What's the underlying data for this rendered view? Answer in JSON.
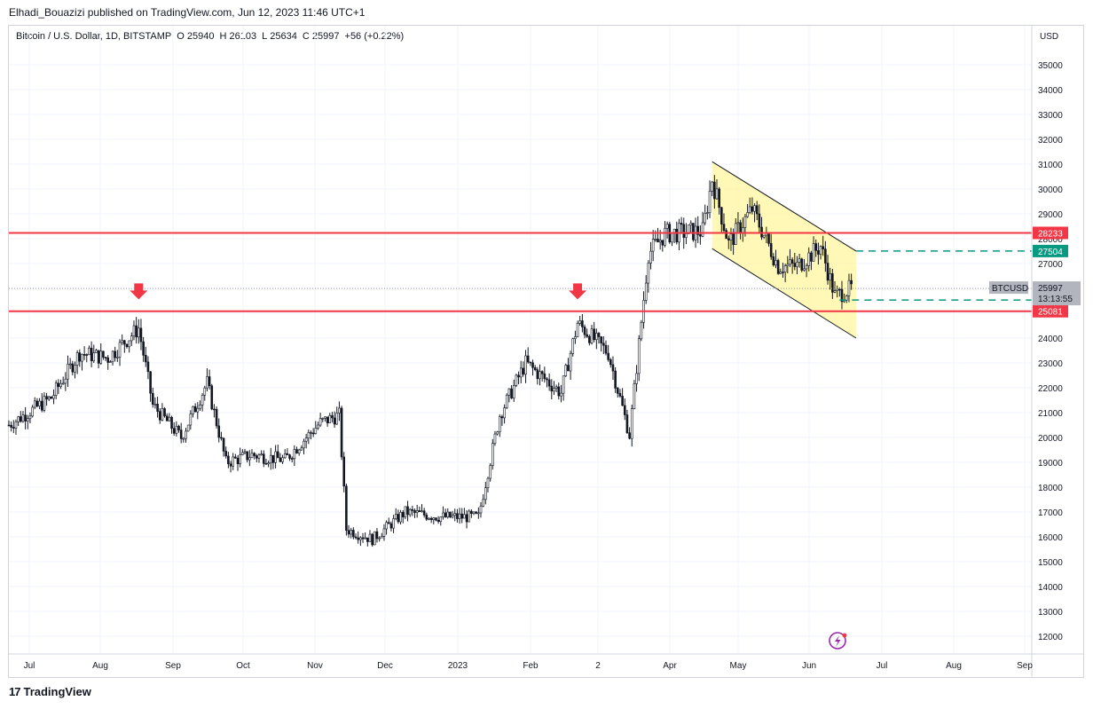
{
  "header": {
    "published_by": "Elhadi_Bouazizi published on TradingView.com, Jun 12, 2023 11:46 UTC+1"
  },
  "legend": {
    "symbol": "Bitcoin / U.S. Dollar, 1D, BITSTAMP",
    "open_label": "O",
    "open": "25940",
    "high_label": "H",
    "high": "26103",
    "low_label": "L",
    "low": "25634",
    "close_label": "C",
    "close": "25997",
    "change": "+56 (+0.22%)"
  },
  "price_axis": {
    "currency": "USD",
    "ticks": [
      "35000",
      "34000",
      "33000",
      "32000",
      "31000",
      "30000",
      "29000",
      "28000",
      "27000",
      "26000",
      "25000",
      "24000",
      "23000",
      "22000",
      "21000",
      "20000",
      "19000",
      "18000",
      "17000",
      "16000",
      "15000",
      "14000",
      "13000",
      "12000"
    ]
  },
  "time_axis": {
    "labels": [
      "Jul",
      "Aug",
      "Sep",
      "Oct",
      "Nov",
      "Dec",
      "2023",
      "Feb",
      "2",
      "Apr",
      "May",
      "Jun",
      "Jul",
      "Aug",
      "Sep"
    ]
  },
  "price_labels": {
    "resistance": "28233",
    "target": "27504",
    "symbol_tag": "BTCUSD",
    "last_price": "25997",
    "countdown": "13:13:55",
    "channel_low": "25530",
    "support": "25081"
  },
  "colors": {
    "candle": "#131722",
    "horizontal_line": "#f23645",
    "channel_fill": "#fff59d",
    "channel_border": "#131722",
    "target_line": "#089981",
    "arrow": "#f23645",
    "badge_red": "#f23645",
    "badge_green": "#089981",
    "badge_gray": "#b2b5be"
  },
  "footer": {
    "brand": "TradingView"
  },
  "chart_data": {
    "type": "candlestick",
    "symbol": "BTCUSD",
    "interval": "1D",
    "ylim": [
      11500,
      35500
    ],
    "horizontal_lines": [
      28233,
      25081
    ],
    "dashed_levels": [
      27504,
      25530
    ],
    "channel": {
      "upper_start": [
        "2023-04-14",
        31100
      ],
      "upper_end": [
        "2023-06-14",
        27504
      ],
      "lower_start": [
        "2023-04-14",
        27600
      ],
      "lower_end": [
        "2023-06-14",
        24000
      ]
    },
    "arrows": [
      {
        "date": "2022-08-14",
        "price": 25200
      },
      {
        "date": "2023-02-16",
        "price": 25200
      }
    ],
    "monthly_path": [
      {
        "date": "2022-06-20",
        "close": 20500
      },
      {
        "date": "2022-07-08",
        "close": 21600
      },
      {
        "date": "2022-07-20",
        "close": 23400
      },
      {
        "date": "2022-08-01",
        "close": 23200
      },
      {
        "date": "2022-08-14",
        "close": 24400
      },
      {
        "date": "2022-08-20",
        "close": 21300
      },
      {
        "date": "2022-09-01",
        "close": 20000
      },
      {
        "date": "2022-09-12",
        "close": 22200
      },
      {
        "date": "2022-09-20",
        "close": 19000
      },
      {
        "date": "2022-10-01",
        "close": 19300
      },
      {
        "date": "2022-10-15",
        "close": 19100
      },
      {
        "date": "2022-10-30",
        "close": 20600
      },
      {
        "date": "2022-11-07",
        "close": 20900
      },
      {
        "date": "2022-11-10",
        "close": 16300
      },
      {
        "date": "2022-11-21",
        "close": 15900
      },
      {
        "date": "2022-12-05",
        "close": 17000
      },
      {
        "date": "2022-12-20",
        "close": 16800
      },
      {
        "date": "2023-01-05",
        "close": 16800
      },
      {
        "date": "2023-01-14",
        "close": 20900
      },
      {
        "date": "2023-01-25",
        "close": 23000
      },
      {
        "date": "2023-02-09",
        "close": 21800
      },
      {
        "date": "2023-02-16",
        "close": 24600
      },
      {
        "date": "2023-03-01",
        "close": 23400
      },
      {
        "date": "2023-03-10",
        "close": 20100
      },
      {
        "date": "2023-03-18",
        "close": 27400
      },
      {
        "date": "2023-03-25",
        "close": 28200
      },
      {
        "date": "2023-04-10",
        "close": 28300
      },
      {
        "date": "2023-04-14",
        "close": 30400
      },
      {
        "date": "2023-04-21",
        "close": 27800
      },
      {
        "date": "2023-05-01",
        "close": 29200
      },
      {
        "date": "2023-05-12",
        "close": 26900
      },
      {
        "date": "2023-05-20",
        "close": 26900
      },
      {
        "date": "2023-05-30",
        "close": 27700
      },
      {
        "date": "2023-06-05",
        "close": 25700
      },
      {
        "date": "2023-06-12",
        "close": 25997
      }
    ]
  }
}
